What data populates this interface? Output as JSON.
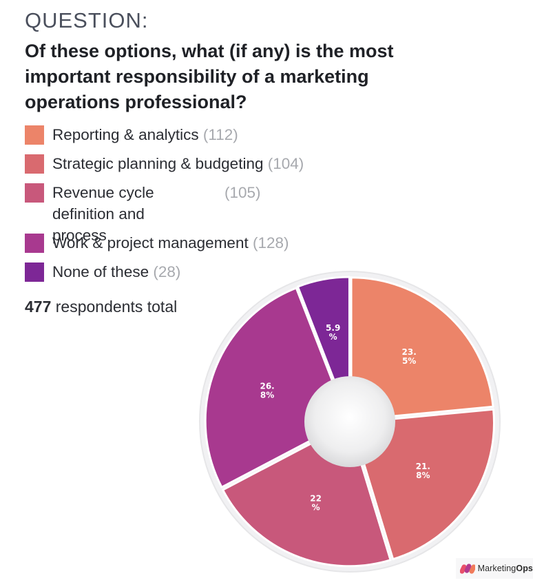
{
  "header": {
    "label": "QUESTION:",
    "question": "Of these options, what (if any) is the most important responsibility of a marketing operations professional?"
  },
  "legend": [
    {
      "label": "Reporting & analytics",
      "count": "(112)",
      "color": "#ec8469"
    },
    {
      "label": "Strategic planning & budgeting",
      "count": "(104)",
      "color": "#d96a6f"
    },
    {
      "label": "Revenue cycle definition and process",
      "count": "(105)",
      "color": "#c8587b"
    },
    {
      "label": "Work & project management",
      "count": "(128)",
      "color": "#a8398f"
    },
    {
      "label": "None of these",
      "count": "(28)",
      "color": "#7d2796"
    }
  ],
  "total": {
    "number": "477",
    "text": " respondents total"
  },
  "chart_data": {
    "type": "pie",
    "donut": true,
    "categories": [
      "Reporting & analytics",
      "Strategic planning & budgeting",
      "Revenue cycle definition and process",
      "Work & project management",
      "None of these"
    ],
    "values": [
      23.5,
      21.8,
      22,
      26.8,
      5.9
    ],
    "slice_labels": [
      [
        "23.",
        "5%"
      ],
      [
        "21.",
        "8%"
      ],
      [
        "22",
        "%"
      ],
      [
        "26.",
        "8%"
      ],
      [
        "5.9",
        "%"
      ]
    ],
    "colors": [
      "#ec8469",
      "#d96a6f",
      "#c8587b",
      "#a8398f",
      "#7d2796"
    ]
  },
  "logo": {
    "text_regular": "Marketing",
    "text_bold": "Ops"
  }
}
